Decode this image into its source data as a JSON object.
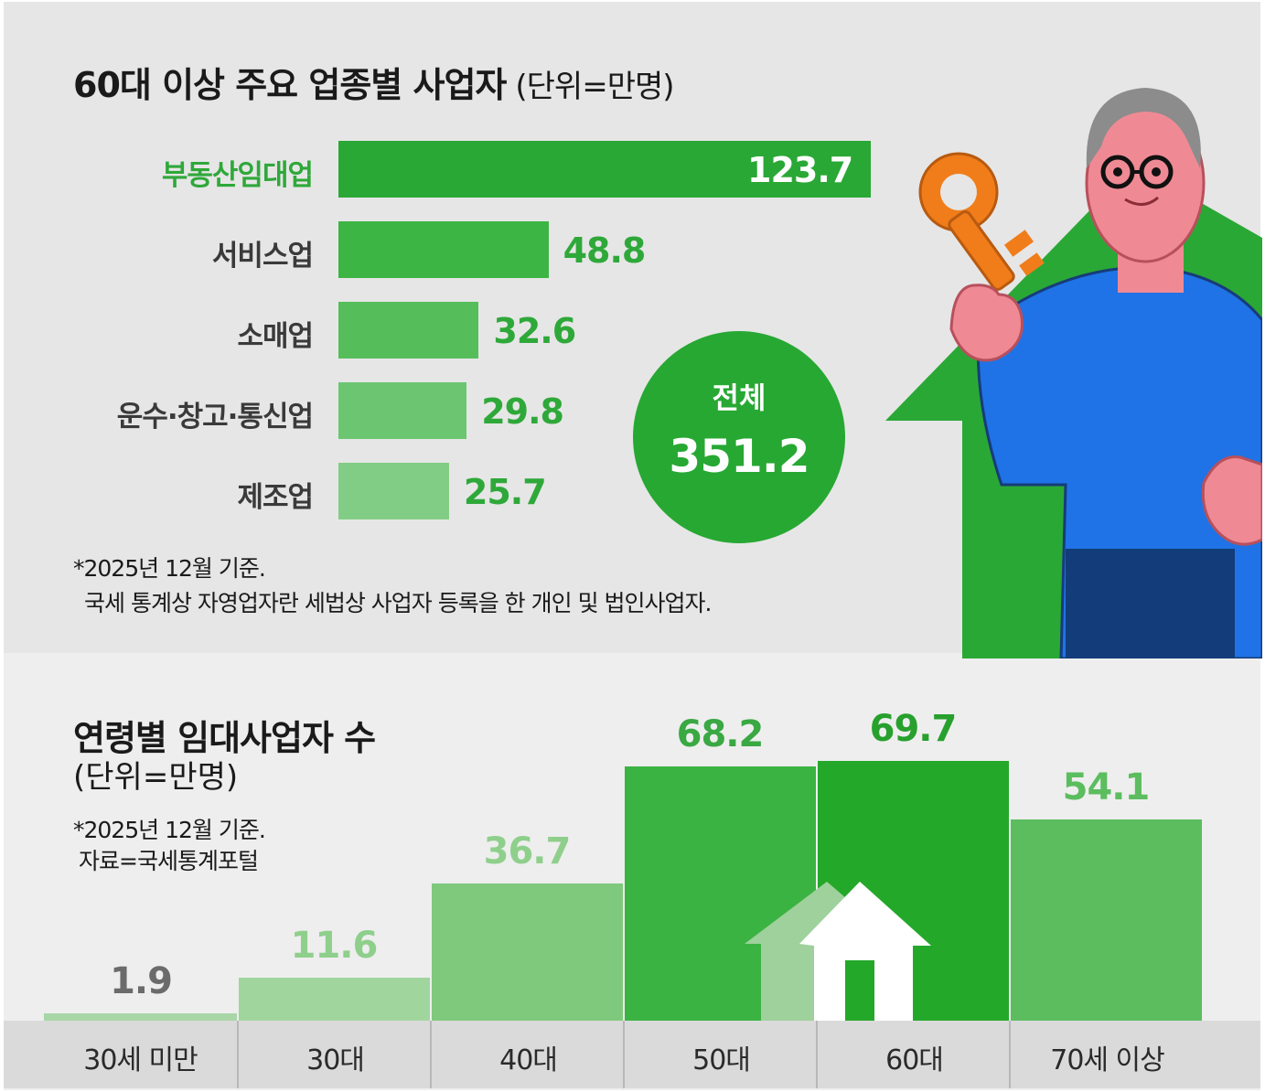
{
  "chart_data": [
    {
      "type": "bar",
      "orientation": "horizontal",
      "title": "60대 이상 주요 업종별 사업자",
      "unit": "(단위=만명)",
      "categories": [
        "부동산임대업",
        "서비스업",
        "소매업",
        "운수·창고·통신업",
        "제조업"
      ],
      "values": [
        123.7,
        48.8,
        32.6,
        29.8,
        25.7
      ],
      "highlight_index": 0,
      "colors": [
        "#2aa835",
        "#3cb544",
        "#55be5b",
        "#6cc671",
        "#82cd85"
      ],
      "total": {
        "label": "전체",
        "value": "351.2"
      },
      "notes": [
        "*2025년 12월 기준.",
        "국세 통계상 자영업자란 세법상 사업자 등록을 한 개인 및 법인사업자."
      ]
    },
    {
      "type": "bar",
      "orientation": "vertical",
      "title": "연령별 임대사업자 수",
      "unit": "(단위=만명)",
      "categories": [
        "30세 미만",
        "30대",
        "40대",
        "50대",
        "60대",
        "70세 이상"
      ],
      "values": [
        1.9,
        11.6,
        36.7,
        68.2,
        69.7,
        54.1
      ],
      "highlight_index": 4,
      "colors": [
        "#a8d6a6",
        "#a0d69e",
        "#7fc97d",
        "#3bb343",
        "#24a82a",
        "#5cbd5f"
      ],
      "label_colors": [
        "#6b6b6b",
        "#8fcf8c",
        "#8fcf8c",
        "#3aa843",
        "#27a02d",
        "#5cbd5f"
      ],
      "notes": [
        "*2025년 12월 기준.",
        "자료=국세통계포털"
      ]
    }
  ]
}
